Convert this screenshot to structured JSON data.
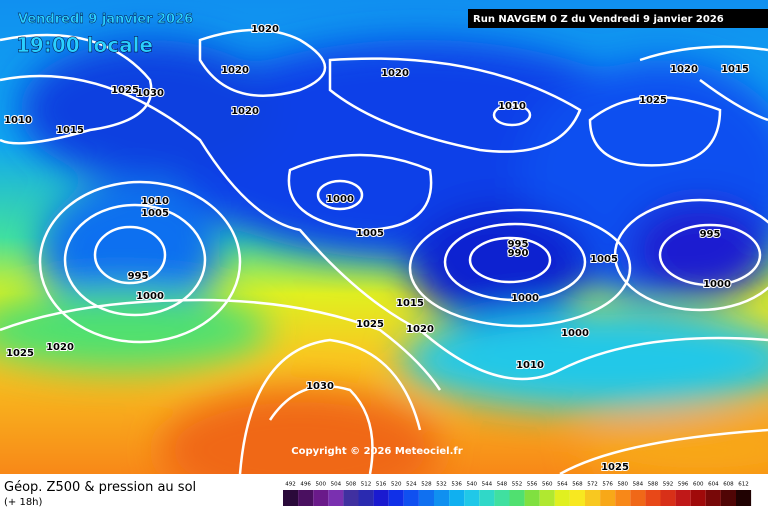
{
  "header": {
    "date": "Vendredi 9 janvier 2026",
    "time": "19:00 locale",
    "run": "Run NAVGEM 0 Z du Vendredi 9 janvier 2026"
  },
  "isobar_labels": [
    "1020",
    "1020",
    "1030",
    "1025",
    "1010",
    "1015",
    "1020",
    "1020",
    "1010",
    "1020",
    "1015",
    "1025",
    "1000",
    "1010",
    "1005",
    "1005",
    "995",
    "1000",
    "995",
    "990",
    "1005",
    "995",
    "1000",
    "1000",
    "1015",
    "1025",
    "1020",
    "1000",
    "1010",
    "1025",
    "1020",
    "1030",
    "1025"
  ],
  "copyright": "Copyright © 2026 Meteociel.fr",
  "footer": {
    "title": "Géop. Z500 & pression au sol",
    "lead": "(+ 18h)"
  },
  "colorbar": {
    "labels": [
      492,
      496,
      500,
      504,
      508,
      512,
      516,
      520,
      524,
      528,
      532,
      536,
      540,
      544,
      548,
      552,
      556,
      560,
      564,
      568,
      572,
      576,
      580,
      584,
      588,
      592,
      596,
      600,
      604,
      608,
      612
    ],
    "colors": [
      "#2a0a3a",
      "#4a1060",
      "#6a1a8a",
      "#7a30b0",
      "#4030a0",
      "#2a2ab0",
      "#1a1ad0",
      "#1030e8",
      "#1050f0",
      "#1070f0",
      "#1090f0",
      "#10b0f0",
      "#20c8e8",
      "#30d8c8",
      "#40e0a0",
      "#50e070",
      "#80e040",
      "#b0e830",
      "#e0f020",
      "#f8e820",
      "#f8c820",
      "#f8a818",
      "#f88818",
      "#f06818",
      "#e84818",
      "#d83018",
      "#c01818",
      "#a00a0a",
      "#780808",
      "#500505",
      "#200202"
    ]
  }
}
